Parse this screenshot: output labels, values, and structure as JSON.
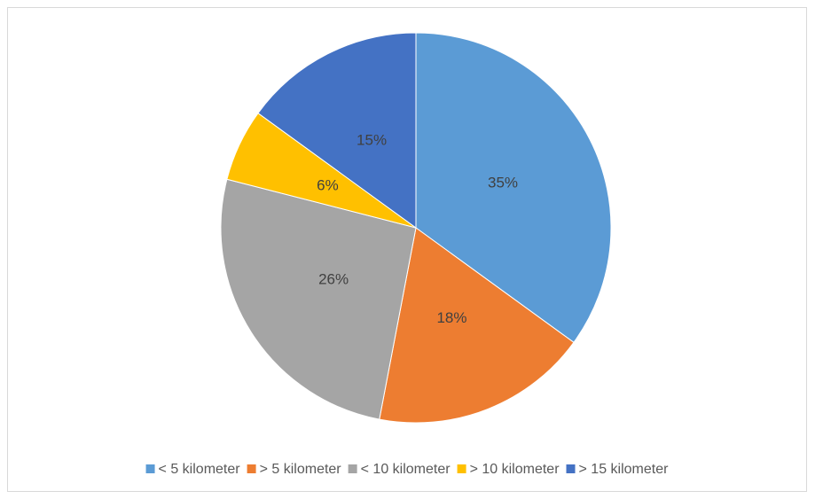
{
  "chart_data": {
    "type": "pie",
    "categories": [
      "< 5 kilometer",
      "> 5 kilometer",
      "< 10 kilometer",
      "> 10 kilometer",
      "> 15 kilometer"
    ],
    "values": [
      35,
      18,
      26,
      6,
      15
    ],
    "value_labels": [
      "35%",
      "18%",
      "26%",
      "6%",
      "15%"
    ],
    "colors": [
      "#5b9bd5",
      "#ed7d31",
      "#a5a5a5",
      "#ffc000",
      "#4472c4"
    ],
    "legend": "bottom"
  }
}
